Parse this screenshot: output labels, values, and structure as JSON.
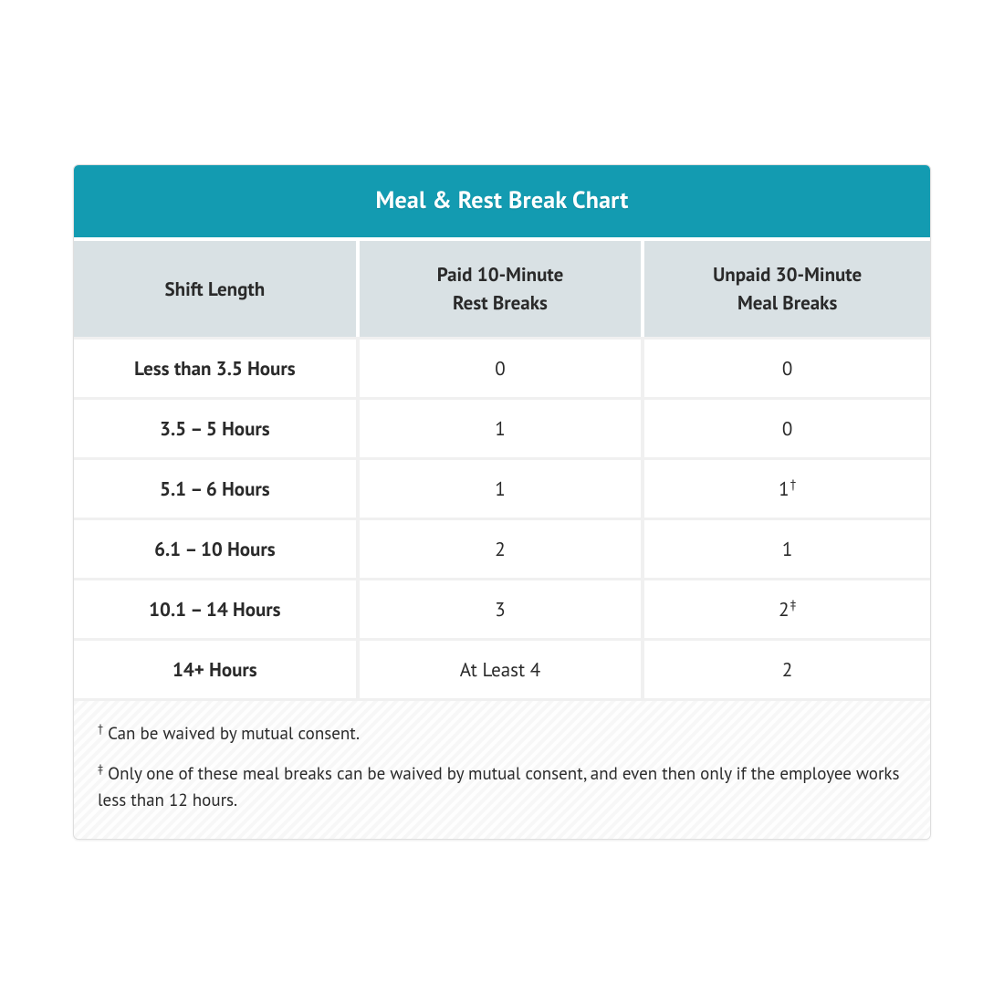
{
  "chart": {
    "title": "Meal & Rest Break Chart",
    "title_bg": "#139bb1",
    "title_color": "#ffffff",
    "header_bg": "#d9e1e4",
    "header_color": "#2a2a2a",
    "row_border": "#f0f0f0",
    "footnote_bg_stripe_a": "#f7f7f7",
    "footnote_bg_stripe_b": "#fefefe",
    "columns": [
      "Shift Length",
      "Paid 10-Minute\nRest Breaks",
      "Unpaid 30-Minute\nMeal Breaks"
    ],
    "rows": [
      {
        "shift": "Less than 3.5 Hours",
        "rest": "0",
        "meal": "0",
        "meal_mark": ""
      },
      {
        "shift": "3.5 – 5 Hours",
        "rest": "1",
        "meal": "0",
        "meal_mark": ""
      },
      {
        "shift": "5.1 – 6 Hours",
        "rest": "1",
        "meal": "1",
        "meal_mark": "†"
      },
      {
        "shift": "6.1 – 10 Hours",
        "rest": "2",
        "meal": "1",
        "meal_mark": ""
      },
      {
        "shift": "10.1 – 14 Hours",
        "rest": "3",
        "meal": "2",
        "meal_mark": "‡"
      },
      {
        "shift": "14+ Hours",
        "rest": "At Least 4",
        "meal": "2",
        "meal_mark": ""
      }
    ],
    "footnotes": [
      {
        "mark": "†",
        "text": "Can be waived by mutual consent."
      },
      {
        "mark": "‡",
        "text": "Only one of these meal breaks can be waived by mutual consent, and even then only if the employee works less than 12 hours."
      }
    ]
  }
}
